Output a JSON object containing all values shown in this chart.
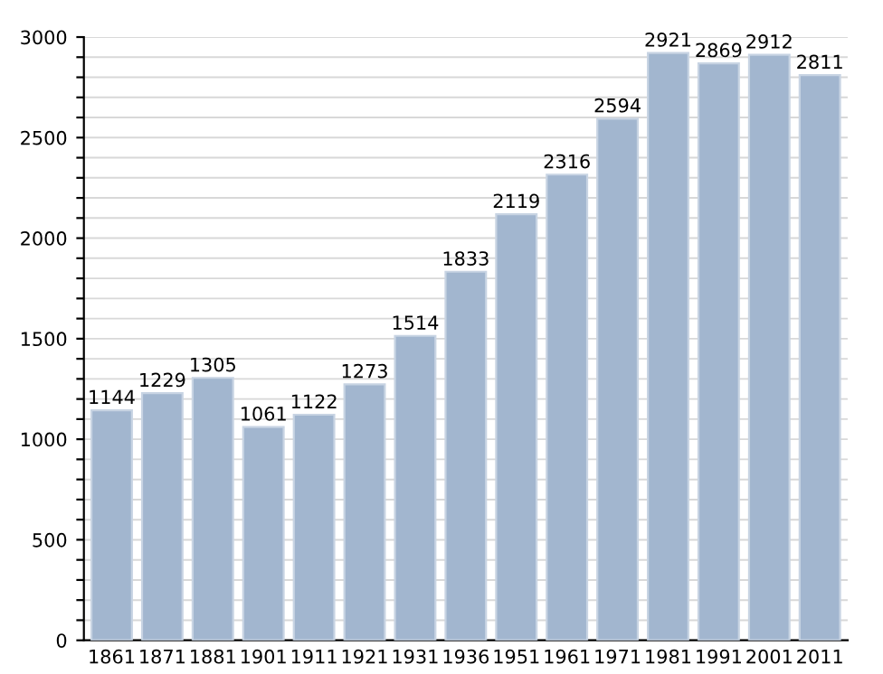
{
  "chart_data": {
    "type": "bar",
    "categories": [
      "1861",
      "1871",
      "1881",
      "1901",
      "1911",
      "1921",
      "1931",
      "1936",
      "1951",
      "1961",
      "1971",
      "1981",
      "1991",
      "2001",
      "2011"
    ],
    "values": [
      1144,
      1229,
      1305,
      1061,
      1122,
      1273,
      1514,
      1833,
      2119,
      2316,
      2594,
      2921,
      2869,
      2912,
      2811
    ],
    "color": "#a2b6cf",
    "ylim": [
      0,
      3000
    ],
    "yticks": [
      0,
      {
        "value": 100,
        "label": null
      },
      {
        "value": 200,
        "label": null
      },
      {
        "value": 300,
        "label": null
      },
      {
        "value": 400,
        "label": null
      },
      500,
      {
        "value": 600,
        "label": null
      },
      {
        "value": 700,
        "label": null
      },
      {
        "value": 800,
        "label": null
      },
      {
        "value": 900,
        "label": null
      },
      1000,
      {
        "value": 1100,
        "label": null
      },
      {
        "value": 1200,
        "label": null
      },
      {
        "value": 1300,
        "label": null
      },
      {
        "value": 1400,
        "label": null
      },
      1500,
      {
        "value": 1600,
        "label": null
      },
      {
        "value": 1700,
        "label": null
      },
      {
        "value": 1800,
        "label": null
      },
      {
        "value": 1900,
        "label": null
      },
      2000,
      {
        "value": 2100,
        "label": null
      },
      {
        "value": 2200,
        "label": null
      },
      {
        "value": 2300,
        "label": null
      },
      {
        "value": 2400,
        "label": null
      },
      2500,
      {
        "value": 2600,
        "label": null
      },
      {
        "value": 2700,
        "label": null
      },
      {
        "value": 2800,
        "label": null
      },
      {
        "value": 2900,
        "label": null
      },
      3000
    ],
    "grid": "y",
    "data_labels": true
  }
}
